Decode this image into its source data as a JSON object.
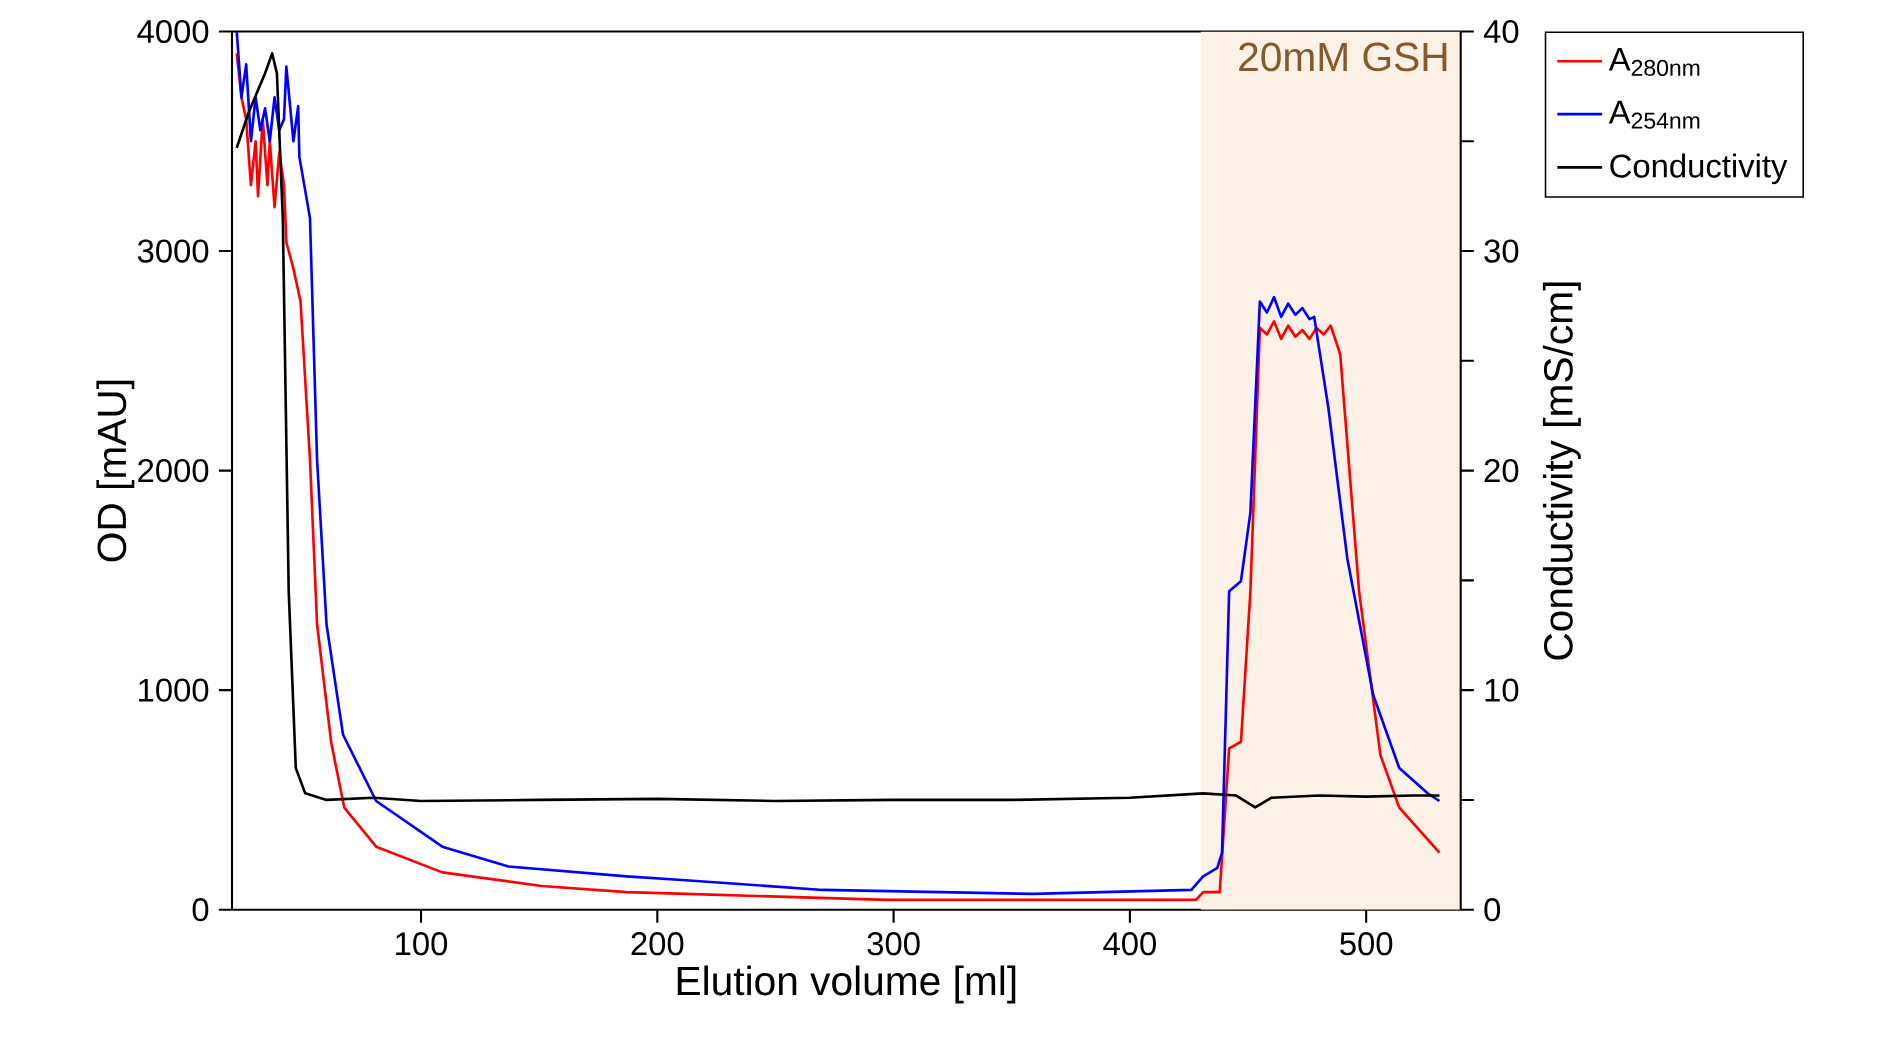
{
  "chart_data": {
    "type": "line",
    "xlabel": "Elution volume [ml]",
    "ylabel": "OD [mAU]",
    "y2label": "Conductivity [mS/cm]",
    "xlim": [
      20,
      540
    ],
    "xticks": [
      100,
      200,
      300,
      400,
      500
    ],
    "ylim": [
      0,
      4000
    ],
    "yticks": [
      0,
      1000,
      2000,
      3000,
      4000
    ],
    "y2lim": [
      0,
      40
    ],
    "y2ticks": [
      0,
      {
        "value": 5,
        "label": null
      },
      10,
      {
        "value": 15,
        "label": null
      },
      20,
      {
        "value": 25,
        "label": null
      },
      30,
      {
        "value": 35,
        "label": null
      },
      40
    ],
    "bands": [
      {
        "axis": "x",
        "from": 430,
        "to": 540,
        "label": "20mM GSH",
        "color": "#fcf1e6"
      }
    ],
    "legend": "top right",
    "marker": "none",
    "line_style": "solid",
    "series": [
      {
        "name": "A$_{280nm}$",
        "color": "#ff0000",
        "x": [
          22,
          24,
          26,
          28,
          30,
          31,
          33,
          35,
          36,
          38,
          40,
          42,
          43,
          46,
          49,
          53,
          56,
          62,
          67.5,
          81,
          109,
          151,
          187,
          212,
          297,
          428,
          431,
          438,
          442,
          447,
          451,
          455,
          458,
          461,
          464,
          467,
          470,
          473,
          476,
          479,
          482,
          485,
          489,
          497,
          506,
          514,
          531
        ],
        "values": [
          3900,
          3700,
          3600,
          3300,
          3500,
          3250,
          3600,
          3300,
          3500,
          3200,
          3450,
          3300,
          3040,
          2920,
          2770,
          2050,
          1300,
          760,
          465,
          287,
          170,
          108,
          80,
          72,
          45,
          45,
          80,
          80,
          735,
          765,
          1450,
          2650,
          2620,
          2680,
          2600,
          2660,
          2610,
          2640,
          2600,
          2650,
          2620,
          2660,
          2530,
          1450,
          705,
          465,
          260
        ]
      },
      {
        "name": "A$_{254nm}$",
        "color": "#0000ff",
        "x": [
          22,
          24,
          26,
          28,
          30,
          32,
          34,
          36,
          38,
          40,
          42,
          43,
          46,
          48,
          48.5,
          53,
          56,
          60,
          67,
          81,
          109,
          137,
          187,
          212,
          270,
          359,
          426,
          431,
          437,
          439,
          442,
          447,
          451,
          455,
          458,
          461,
          464,
          467,
          470,
          473,
          476,
          478,
          484,
          492,
          503,
          514,
          526,
          531
        ],
        "values": [
          4000,
          3700,
          3850,
          3500,
          3700,
          3550,
          3650,
          3500,
          3700,
          3550,
          3600,
          3840,
          3500,
          3660,
          3430,
          3150,
          2050,
          1300,
          797,
          495,
          287,
          197,
          152,
          134,
          90,
          72,
          90,
          152,
          190,
          260,
          1450,
          1496,
          1810,
          2770,
          2720,
          2790,
          2700,
          2760,
          2710,
          2740,
          2690,
          2700,
          2285,
          1600,
          977,
          645,
          530,
          495
        ]
      },
      {
        "name": "Conductivity",
        "color": "#000000",
        "axis": "y2",
        "x": [
          22,
          27,
          34,
          37,
          39,
          41.5,
          44,
          47,
          51,
          60,
          80,
          100,
          150,
          200,
          250,
          300,
          350,
          400,
          431,
          445,
          453,
          460,
          480,
          500,
          520,
          531
        ],
        "values": [
          34.7,
          36.3,
          38.1,
          39.0,
          38.1,
          31.5,
          14.5,
          6.45,
          5.3,
          5.0,
          5.1,
          4.95,
          5.0,
          5.05,
          4.95,
          5.0,
          5.0,
          5.1,
          5.3,
          5.2,
          4.66,
          5.1,
          5.2,
          5.15,
          5.2,
          5.2
        ]
      }
    ]
  }
}
